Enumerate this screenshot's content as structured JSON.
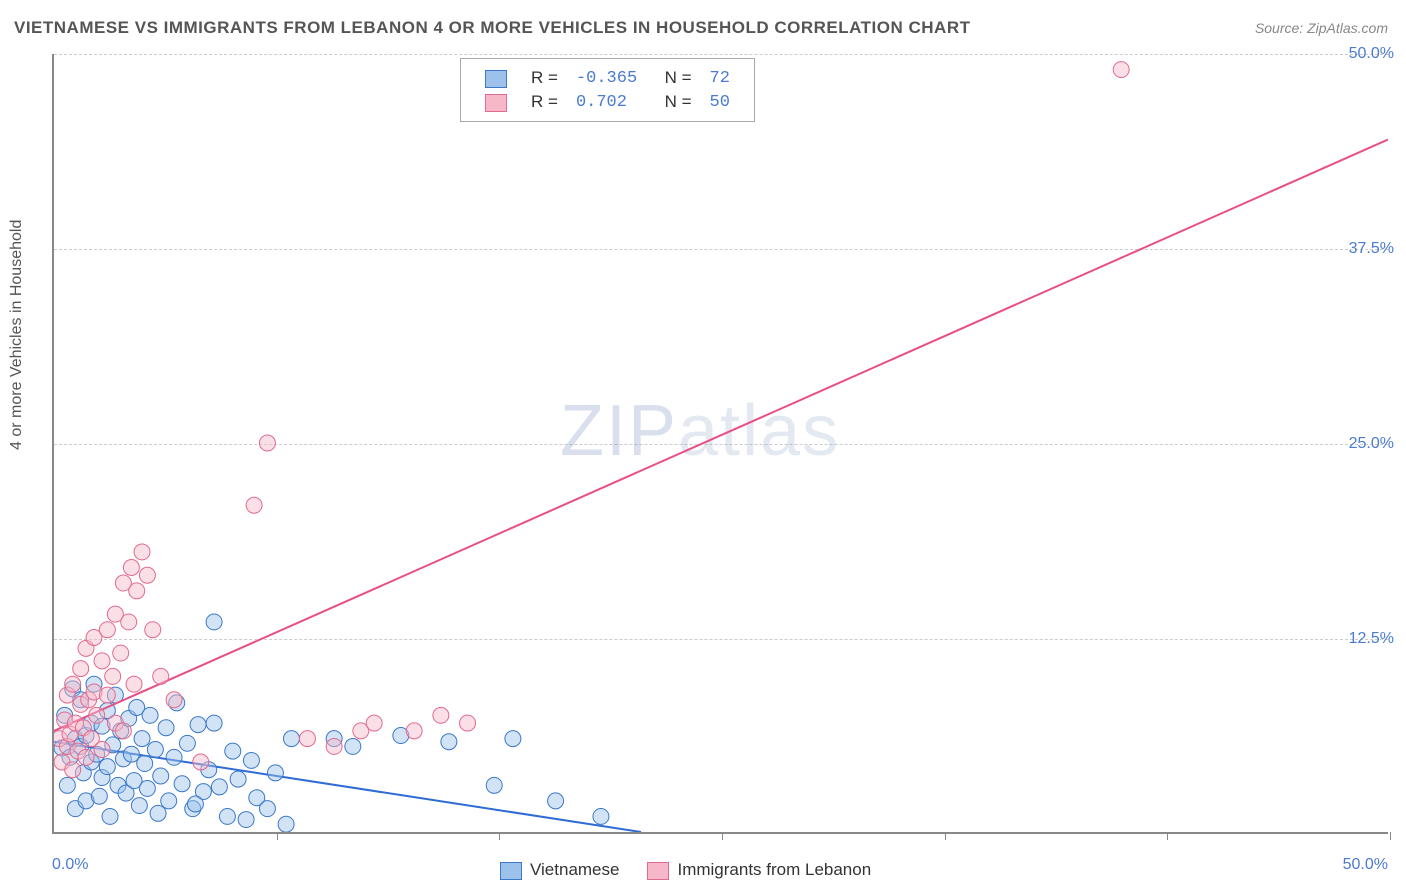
{
  "title": "VIETNAMESE VS IMMIGRANTS FROM LEBANON 4 OR MORE VEHICLES IN HOUSEHOLD CORRELATION CHART",
  "source": "Source: ZipAtlas.com",
  "y_axis_label": "4 or more Vehicles in Household",
  "watermark_a": "ZIP",
  "watermark_b": "atlas",
  "chart": {
    "type": "scatter",
    "background_color": "#ffffff",
    "grid_color": "#cccccc",
    "axis_color": "#888888",
    "label_color": "#4a7bd0",
    "xlim": [
      0,
      50
    ],
    "ylim": [
      0,
      50
    ],
    "y_ticks": [
      12.5,
      25.0,
      37.5,
      50.0
    ],
    "y_tick_labels": [
      "12.5%",
      "25.0%",
      "37.5%",
      "50.0%"
    ],
    "x_ticks": [
      8.33,
      16.67,
      25.0,
      33.33,
      41.67,
      50.0
    ],
    "x_origin_label": "0.0%",
    "x_max_label": "50.0%",
    "marker_radius": 8,
    "marker_opacity": 0.45,
    "line_width": 2
  },
  "series": [
    {
      "name": "Vietnamese",
      "color_fill": "#9cc2ec",
      "color_stroke": "#3b78c9",
      "line_color": "#2e6bd4",
      "R": "-0.365",
      "N": "72",
      "regression": {
        "x1": 0,
        "y1": 5.8,
        "x2": 22,
        "y2": 0
      },
      "points": [
        [
          0.3,
          5.4
        ],
        [
          0.4,
          7.5
        ],
        [
          0.5,
          3.0
        ],
        [
          0.6,
          4.8
        ],
        [
          0.7,
          9.2
        ],
        [
          0.8,
          6.0
        ],
        [
          0.8,
          1.5
        ],
        [
          1.0,
          5.5
        ],
        [
          1.0,
          8.5
        ],
        [
          1.1,
          3.8
        ],
        [
          1.2,
          6.2
        ],
        [
          1.2,
          2.0
        ],
        [
          1.4,
          7.0
        ],
        [
          1.4,
          4.5
        ],
        [
          1.5,
          9.5
        ],
        [
          1.6,
          5.0
        ],
        [
          1.7,
          2.3
        ],
        [
          1.8,
          6.8
        ],
        [
          1.8,
          3.5
        ],
        [
          2.0,
          4.2
        ],
        [
          2.0,
          7.8
        ],
        [
          2.1,
          1.0
        ],
        [
          2.2,
          5.6
        ],
        [
          2.3,
          8.8
        ],
        [
          2.4,
          3.0
        ],
        [
          2.5,
          6.5
        ],
        [
          2.6,
          4.7
        ],
        [
          2.7,
          2.5
        ],
        [
          2.8,
          7.3
        ],
        [
          2.9,
          5.0
        ],
        [
          3.0,
          3.3
        ],
        [
          3.1,
          8.0
        ],
        [
          3.2,
          1.7
        ],
        [
          3.3,
          6.0
        ],
        [
          3.4,
          4.4
        ],
        [
          3.5,
          2.8
        ],
        [
          3.6,
          7.5
        ],
        [
          3.8,
          5.3
        ],
        [
          3.9,
          1.2
        ],
        [
          4.0,
          3.6
        ],
        [
          4.2,
          6.7
        ],
        [
          4.3,
          2.0
        ],
        [
          4.5,
          4.8
        ],
        [
          4.6,
          8.3
        ],
        [
          4.8,
          3.1
        ],
        [
          5.0,
          5.7
        ],
        [
          5.2,
          1.5
        ],
        [
          5.4,
          6.9
        ],
        [
          5.6,
          2.6
        ],
        [
          5.8,
          4.0
        ],
        [
          6.0,
          7.0
        ],
        [
          6.2,
          2.9
        ],
        [
          6.5,
          1.0
        ],
        [
          6.7,
          5.2
        ],
        [
          6.9,
          3.4
        ],
        [
          7.2,
          0.8
        ],
        [
          7.4,
          4.6
        ],
        [
          7.6,
          2.2
        ],
        [
          8.0,
          1.5
        ],
        [
          8.3,
          3.8
        ],
        [
          8.7,
          0.5
        ],
        [
          8.9,
          6.0
        ],
        [
          6.0,
          13.5
        ],
        [
          10.5,
          6.0
        ],
        [
          11.2,
          5.5
        ],
        [
          13.0,
          6.2
        ],
        [
          14.8,
          5.8
        ],
        [
          16.5,
          3.0
        ],
        [
          17.2,
          6.0
        ],
        [
          18.8,
          2.0
        ],
        [
          20.5,
          1.0
        ],
        [
          5.3,
          1.8
        ]
      ]
    },
    {
      "name": "Immigrants from Lebanon",
      "color_fill": "#f6b8c8",
      "color_stroke": "#e26a8f",
      "line_color": "#e84f86",
      "R": "0.702",
      "N": "50",
      "regression": {
        "x1": 0,
        "y1": 6.5,
        "x2": 50,
        "y2": 44.5
      },
      "points": [
        [
          0.2,
          6.0
        ],
        [
          0.3,
          4.5
        ],
        [
          0.4,
          7.2
        ],
        [
          0.5,
          5.5
        ],
        [
          0.5,
          8.8
        ],
        [
          0.6,
          6.3
        ],
        [
          0.7,
          4.0
        ],
        [
          0.7,
          9.5
        ],
        [
          0.8,
          7.0
        ],
        [
          0.9,
          5.2
        ],
        [
          1.0,
          8.2
        ],
        [
          1.0,
          10.5
        ],
        [
          1.1,
          6.7
        ],
        [
          1.2,
          4.8
        ],
        [
          1.2,
          11.8
        ],
        [
          1.3,
          8.5
        ],
        [
          1.4,
          6.0
        ],
        [
          1.5,
          9.0
        ],
        [
          1.5,
          12.5
        ],
        [
          1.6,
          7.5
        ],
        [
          1.8,
          5.3
        ],
        [
          1.8,
          11.0
        ],
        [
          2.0,
          8.8
        ],
        [
          2.0,
          13.0
        ],
        [
          2.2,
          10.0
        ],
        [
          2.3,
          14.0
        ],
        [
          2.5,
          11.5
        ],
        [
          2.6,
          16.0
        ],
        [
          2.8,
          13.5
        ],
        [
          2.9,
          17.0
        ],
        [
          3.1,
          15.5
        ],
        [
          3.3,
          18.0
        ],
        [
          3.5,
          16.5
        ],
        [
          3.7,
          13.0
        ],
        [
          2.3,
          7.0
        ],
        [
          2.6,
          6.5
        ],
        [
          3.0,
          9.5
        ],
        [
          4.0,
          10.0
        ],
        [
          4.5,
          8.5
        ],
        [
          5.5,
          4.5
        ],
        [
          7.5,
          21.0
        ],
        [
          8.0,
          25.0
        ],
        [
          9.5,
          6.0
        ],
        [
          10.5,
          5.5
        ],
        [
          11.5,
          6.5
        ],
        [
          12.0,
          7.0
        ],
        [
          13.5,
          6.5
        ],
        [
          14.5,
          7.5
        ],
        [
          15.5,
          7.0
        ],
        [
          40.0,
          49.0
        ]
      ]
    }
  ],
  "legend_top": {
    "r_label": "R =",
    "n_label": "N ="
  },
  "legend_bottom": {
    "items": [
      "Vietnamese",
      "Immigrants from Lebanon"
    ]
  }
}
